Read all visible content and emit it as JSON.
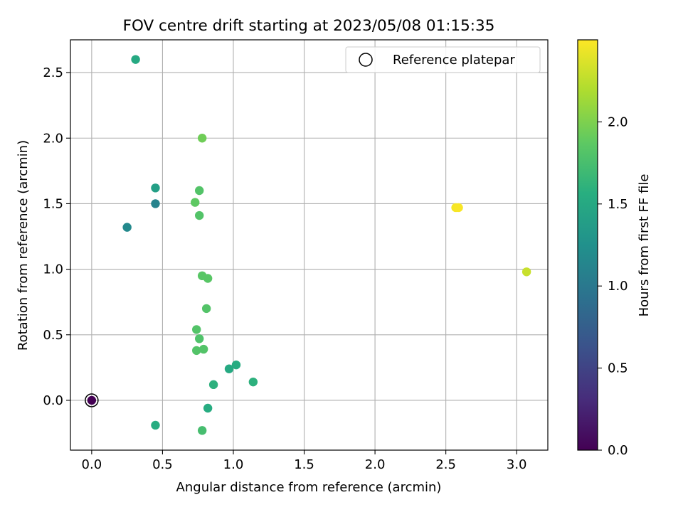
{
  "chart_data": {
    "type": "scatter",
    "title": "FOV centre drift starting at 2023/05/08 01:15:35",
    "xlabel": "Angular distance from reference (arcmin)",
    "ylabel": "Rotation from reference (arcmin)",
    "xlim": [
      -0.15,
      3.22
    ],
    "ylim": [
      -0.38,
      2.75
    ],
    "xticks": [
      "0.0",
      "0.5",
      "1.0",
      "1.5",
      "2.0",
      "2.5",
      "3.0"
    ],
    "yticks": [
      "0.0",
      "0.5",
      "1.0",
      "1.5",
      "2.0",
      "2.5"
    ],
    "grid": true,
    "colormap": "viridis",
    "colorbar": {
      "label": "Hours from first FF file",
      "range": [
        0.0,
        2.5
      ],
      "ticks": [
        "0.0",
        "0.5",
        "1.0",
        "1.5",
        "2.0"
      ]
    },
    "legend": {
      "placement": "top-right",
      "entries": [
        "Reference platepar"
      ]
    },
    "reference_point": {
      "x": 0.0,
      "y": 0.0
    },
    "points": [
      {
        "x": 0.0,
        "y": 0.0,
        "hours": 0.0
      },
      {
        "x": 0.25,
        "y": 1.32,
        "hours": 1.18
      },
      {
        "x": 0.45,
        "y": 1.5,
        "hours": 1.12
      },
      {
        "x": 0.45,
        "y": 1.62,
        "hours": 1.41
      },
      {
        "x": 0.31,
        "y": 2.6,
        "hours": 1.52
      },
      {
        "x": 0.45,
        "y": -0.19,
        "hours": 1.55
      },
      {
        "x": 0.82,
        "y": -0.06,
        "hours": 1.55
      },
      {
        "x": 0.86,
        "y": 0.12,
        "hours": 1.6
      },
      {
        "x": 1.14,
        "y": 0.14,
        "hours": 1.6
      },
      {
        "x": 0.97,
        "y": 0.24,
        "hours": 1.52
      },
      {
        "x": 1.02,
        "y": 0.27,
        "hours": 1.55
      },
      {
        "x": 0.78,
        "y": -0.23,
        "hours": 1.75
      },
      {
        "x": 0.74,
        "y": 0.38,
        "hours": 1.82
      },
      {
        "x": 0.79,
        "y": 0.39,
        "hours": 1.82
      },
      {
        "x": 0.76,
        "y": 0.47,
        "hours": 1.8
      },
      {
        "x": 0.74,
        "y": 0.54,
        "hours": 1.82
      },
      {
        "x": 0.81,
        "y": 0.7,
        "hours": 1.82
      },
      {
        "x": 0.78,
        "y": 0.95,
        "hours": 1.85
      },
      {
        "x": 0.82,
        "y": 0.93,
        "hours": 1.85
      },
      {
        "x": 0.76,
        "y": 1.41,
        "hours": 1.82
      },
      {
        "x": 0.73,
        "y": 1.51,
        "hours": 1.88
      },
      {
        "x": 0.76,
        "y": 1.6,
        "hours": 1.82
      },
      {
        "x": 0.78,
        "y": 2.0,
        "hours": 1.95
      },
      {
        "x": 2.57,
        "y": 1.47,
        "hours": 2.47
      },
      {
        "x": 2.59,
        "y": 1.47,
        "hours": 2.48
      },
      {
        "x": 3.07,
        "y": 0.98,
        "hours": 2.3
      }
    ]
  }
}
